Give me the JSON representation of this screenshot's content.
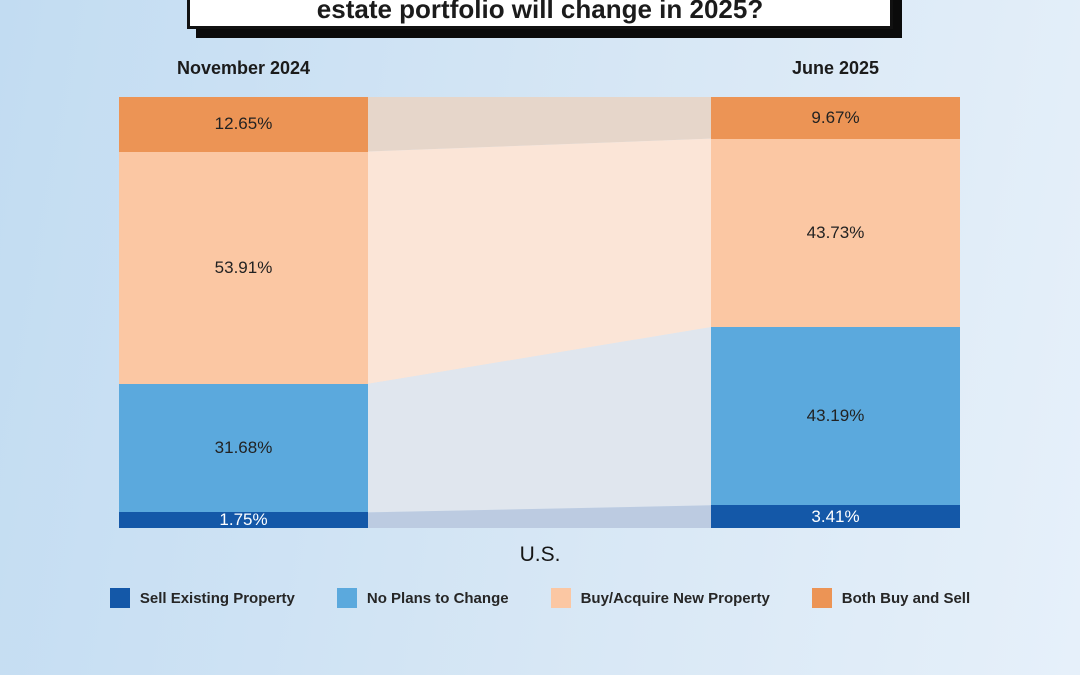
{
  "title": {
    "visible_text": "estate portfolio will change in 2025?"
  },
  "chart_data": {
    "type": "bar",
    "variant": "stacked-bar-with-flows (alluvial / slope)",
    "categories": [
      "November 2024",
      "June 2025"
    ],
    "series": [
      {
        "name": "Both Buy and Sell",
        "values": [
          12.65,
          9.67
        ],
        "labels": [
          "12.65%",
          "9.67%"
        ],
        "color": "#EC9455",
        "flow_color": "#E6D6CA",
        "label_color": "#222222"
      },
      {
        "name": "Buy/Acquire New Property",
        "values": [
          53.91,
          43.73
        ],
        "labels": [
          "53.91%",
          "43.73%"
        ],
        "color": "#FBC7A3",
        "flow_color": "#FBE5D7",
        "label_color": "#222222"
      },
      {
        "name": "No Plans to Change",
        "values": [
          31.68,
          43.19
        ],
        "labels": [
          "31.68%",
          "43.19%"
        ],
        "color": "#5BA9DD",
        "flow_color": "#E0E6EE",
        "label_color": "#222222"
      },
      {
        "name": "Sell Existing Property",
        "values": [
          1.75,
          3.41
        ],
        "labels": [
          "1.75%",
          "3.41%"
        ],
        "color": "#1458A8",
        "flow_color": "#BCCBE1",
        "label_color": "#FFFFFF"
      }
    ],
    "value_suffix": "%",
    "xlabel": "U.S.",
    "ylim": [
      0,
      100
    ],
    "grid": false,
    "legend_position": "bottom"
  },
  "legend": {
    "items": [
      {
        "label": "Sell Existing Property",
        "color": "#1458A8"
      },
      {
        "label": "No Plans to Change",
        "color": "#5BA9DD"
      },
      {
        "label": "Buy/Acquire New Property",
        "color": "#FBC7A3"
      },
      {
        "label": "Both Buy and Sell",
        "color": "#EC9455"
      }
    ]
  },
  "colors": {
    "background_start": "#C2DCF2",
    "background_end": "#E6F0FA",
    "title_card_bg": "#FFFFFF",
    "title_card_border": "#111111",
    "text_dark": "#1B1B1B"
  }
}
